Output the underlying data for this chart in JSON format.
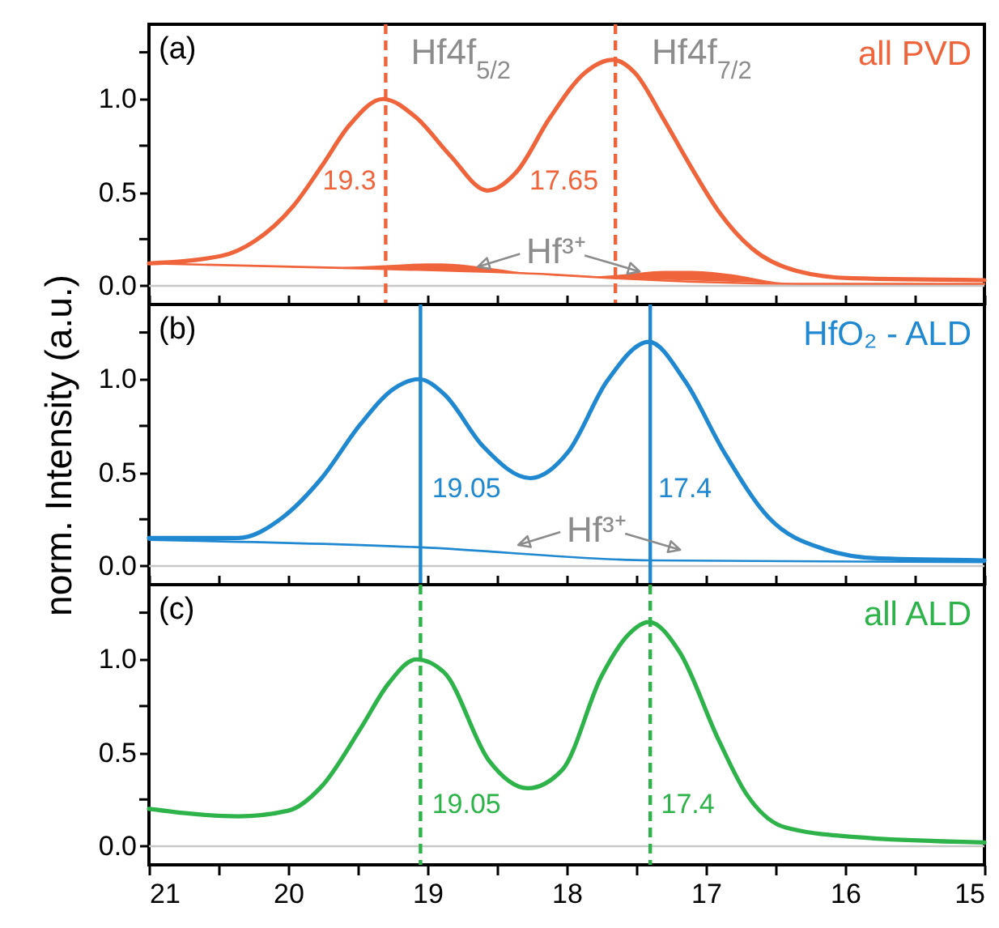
{
  "chart_data": [
    {
      "type": "line",
      "title": "(a)",
      "xlim": [
        21,
        15
      ],
      "xticks": [
        21,
        {
          "value": 20.5,
          "label": null
        },
        20,
        {
          "value": 19.5,
          "label": null
        },
        19,
        {
          "value": 18.5,
          "label": null
        },
        18,
        {
          "value": 17.5,
          "label": null
        },
        17,
        {
          "value": 16.5,
          "label": null
        },
        16,
        {
          "value": 15.5,
          "label": null
        },
        15
      ],
      "ylim": [
        -0.1,
        1.4
      ],
      "yticks": [
        {
          "value": 0,
          "label": "0.0"
        },
        {
          "value": 0.25,
          "label": null
        },
        {
          "value": 0.5,
          "label": "0.5"
        },
        {
          "value": 0.75,
          "label": null
        },
        {
          "value": 1,
          "label": "1.0"
        },
        {
          "value": 1.25,
          "label": null
        }
      ],
      "tick_labels": "y",
      "annotations": [
        "Hf4f$_{5/2}$",
        "Hf4f$_{7/2}$",
        "19.3",
        "17.65",
        "Hf³⁺"
      ],
      "ref_lines": [
        {
          "axis": "y",
          "value": 0,
          "color": "#c8c8c8"
        },
        {
          "axis": "x",
          "value": 19.3,
          "color": "#f0643c",
          "line_style": "dashed"
        },
        {
          "axis": "x",
          "value": 17.65,
          "color": "#f0643c",
          "line_style": "dashed"
        }
      ],
      "series": [
        {
          "name": "all PVD",
          "color": "#f0643c",
          "x": [
            21,
            20.48,
            20.24,
            19.96,
            19.76,
            19.56,
            19.32,
            19.08,
            18.84,
            18.57,
            18.36,
            18.12,
            17.87,
            17.67,
            17.51,
            17.31,
            17.11,
            16.91,
            16.67,
            16.35,
            15.95,
            15
          ],
          "values": [
            0.12,
            0.16,
            0.24,
            0.43,
            0.64,
            0.86,
            1.0,
            0.9,
            0.7,
            0.51,
            0.61,
            0.9,
            1.14,
            1.21,
            1.14,
            0.9,
            0.64,
            0.4,
            0.2,
            0.08,
            0.04,
            0.03
          ]
        },
        {
          "color": "#f0643c",
          "x": [
            21,
            19.3,
            18.1,
            17.65,
            16.3,
            15
          ],
          "values": [
            0.12,
            0.09,
            0.06,
            0.04,
            0.01,
            0.01
          ]
        },
        {
          "type": "area",
          "color": "#f0643c",
          "x": [
            19.6,
            19.3,
            19.0,
            18.9,
            18.6,
            18.3,
            18.1
          ],
          "values": [
            0.1,
            0.11,
            0.12,
            0.12,
            0.1,
            0.07,
            0.06
          ]
        },
        {
          "type": "area",
          "color": "#f0643c",
          "x": [
            17.8,
            17.6,
            17.3,
            17.1,
            16.8,
            16.5,
            16.3
          ],
          "values": [
            0.05,
            0.06,
            0.08,
            0.08,
            0.06,
            0.02,
            0.01
          ]
        }
      ]
    },
    {
      "type": "line",
      "title": "(b)",
      "ylabel": "norm. Intensity (a.u.)",
      "xlim": [
        21,
        15
      ],
      "xticks": [
        21,
        {
          "value": 20.5,
          "label": null
        },
        20,
        {
          "value": 19.5,
          "label": null
        },
        19,
        {
          "value": 18.5,
          "label": null
        },
        18,
        {
          "value": 17.5,
          "label": null
        },
        17,
        {
          "value": 16.5,
          "label": null
        },
        16,
        {
          "value": 15.5,
          "label": null
        },
        15
      ],
      "ylim": [
        -0.1,
        1.4
      ],
      "yticks": [
        {
          "value": 0,
          "label": "0.0"
        },
        {
          "value": 0.25,
          "label": null
        },
        {
          "value": 0.5,
          "label": "0.5"
        },
        {
          "value": 0.75,
          "label": null
        },
        {
          "value": 1,
          "label": "1.0"
        },
        {
          "value": 1.25,
          "label": null
        }
      ],
      "tick_labels": "y",
      "annotations": [
        "19.05",
        "17.4",
        "Hf³⁺"
      ],
      "ref_lines": [
        {
          "axis": "y",
          "value": 0,
          "color": "#c8c8c8"
        },
        {
          "axis": "x",
          "value": 19.05,
          "color": "#1f88d0",
          "line_style": "solid"
        },
        {
          "axis": "x",
          "value": 17.4,
          "color": "#1f88d0",
          "line_style": "solid"
        }
      ],
      "series": [
        {
          "name": "HfO₂ - ALD",
          "color": "#1f88d0",
          "x": [
            21,
            20.36,
            20.04,
            19.76,
            19.48,
            19.24,
            19.06,
            18.88,
            18.6,
            18.26,
            17.99,
            17.71,
            17.41,
            17.15,
            16.87,
            16.55,
            16.15,
            15.75,
            15
          ],
          "values": [
            0.15,
            0.15,
            0.26,
            0.47,
            0.76,
            0.95,
            1.0,
            0.92,
            0.64,
            0.47,
            0.61,
            0.99,
            1.2,
            0.99,
            0.61,
            0.26,
            0.09,
            0.04,
            0.03
          ]
        },
        {
          "color": "#1f88d0",
          "x": [
            21,
            19.05,
            17.4,
            15
          ],
          "values": [
            0.14,
            0.1,
            0.03,
            0.02
          ]
        }
      ]
    },
    {
      "type": "line",
      "title": "(c)",
      "xlim": [
        21,
        15
      ],
      "xticks": [
        21,
        {
          "value": 20.5,
          "label": null
        },
        20,
        {
          "value": 19.5,
          "label": null
        },
        19,
        {
          "value": 18.5,
          "label": null
        },
        18,
        {
          "value": 17.5,
          "label": null
        },
        17,
        {
          "value": 16.5,
          "label": null
        },
        16,
        {
          "value": 15.5,
          "label": null
        },
        15
      ],
      "ylim": [
        -0.1,
        1.4
      ],
      "yticks": [
        {
          "value": 0,
          "label": "0.0"
        },
        {
          "value": 0.25,
          "label": null
        },
        {
          "value": 0.5,
          "label": "0.5"
        },
        {
          "value": 0.75,
          "label": null
        },
        {
          "value": 1,
          "label": "1.0"
        },
        {
          "value": 1.25,
          "label": null
        }
      ],
      "annotations": [
        "19.05",
        "17.4"
      ],
      "ref_lines": [
        {
          "axis": "y",
          "value": 0,
          "color": "#c8c8c8"
        },
        {
          "axis": "x",
          "value": 19.05,
          "color": "#2db34a",
          "line_style": "dashed"
        },
        {
          "axis": "x",
          "value": 17.4,
          "color": "#2db34a",
          "line_style": "dashed"
        }
      ],
      "series": [
        {
          "name": "all ALD",
          "color": "#2db34a",
          "x": [
            21,
            20.36,
            20.0,
            19.76,
            19.48,
            19.28,
            19.08,
            18.88,
            18.56,
            18.28,
            18.03,
            17.75,
            17.56,
            17.41,
            17.19,
            16.91,
            16.71,
            16.43,
            15.95,
            15
          ],
          "values": [
            0.2,
            0.16,
            0.19,
            0.32,
            0.63,
            0.87,
            1.0,
            0.93,
            0.46,
            0.31,
            0.41,
            0.91,
            1.13,
            1.2,
            1.04,
            0.57,
            0.28,
            0.1,
            0.05,
            0.02
          ]
        }
      ]
    }
  ]
}
